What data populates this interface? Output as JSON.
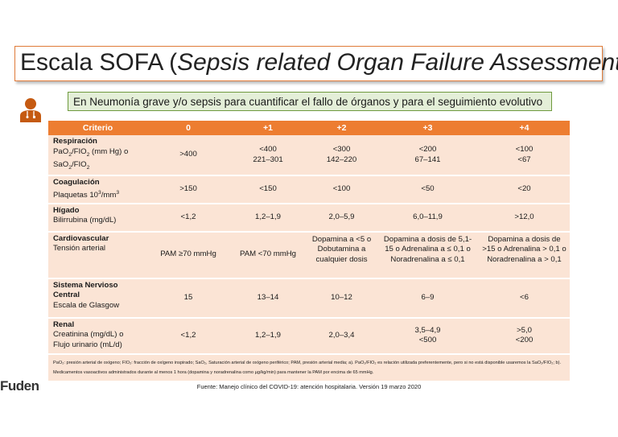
{
  "title": {
    "main": "Escala SOFA (",
    "italic": "Sepsis related Organ Failure Assessment",
    "close": ")"
  },
  "subtitle": "En Neumonía grave y/o sepsis para cuantificar el fallo de órganos y para el seguimiento evolutivo",
  "table": {
    "headers": [
      "Criterio",
      "0",
      "+1",
      "+2",
      "+3",
      "+4"
    ],
    "respiracion": {
      "name": "Respiración",
      "v0": ">400",
      "v1a": "<400",
      "v1b": "221–301",
      "v2a": "<300",
      "v2b": "142–220",
      "v3a": "<200",
      "v3b": "67–141",
      "v4a": "<100",
      "v4b": "<67"
    },
    "coagulacion": {
      "name": "Coagulación",
      "sub": "Plaquetas 10",
      "sub_exp": "3",
      "sub_tail": "/mm",
      "sub_exp2": "3",
      "v0": ">150",
      "v1": "<150",
      "v2": "<100",
      "v3": "<50",
      "v4": "<20"
    },
    "higado": {
      "name": "Hígado",
      "sub": "Bilirrubina (mg/dL)",
      "v0": "<1,2",
      "v1": "1,2–1,9",
      "v2": "2,0–5,9",
      "v3": "6,0–11,9",
      "v4": ">12,0"
    },
    "cardio": {
      "name": "Cardiovascular",
      "sub": "Tensión arterial",
      "v0": "PAM ≥70 mmHg",
      "v1": "PAM <70 mmHg",
      "v2": "Dopamina a <5 o Dobutamina a cualquier dosis",
      "v3": "Dopamina a dosis de 5,1-15 o Adrenalina a ≤ 0,1 o Noradrenalina a ≤ 0,1",
      "v4": "Dopamina a dosis de >15 o Adrenalina > 0,1 o Noradrenalina a > 0,1"
    },
    "snc": {
      "name": "Sistema Nervioso Central",
      "sub": "Escala de Glasgow",
      "v0": "15",
      "v1": "13–14",
      "v2": "10–12",
      "v3": "6–9",
      "v4": "<6"
    },
    "renal": {
      "name": "Renal",
      "sub1": "Creatinina (mg/dL) o",
      "sub2": "Flujo urinario (mL/d)",
      "v0": "<1,2",
      "v1": "1,2–1,9",
      "v2": "2,0–3,4",
      "v3a": "3,5–4,9",
      "v3b": "<500",
      "v4a": ">5,0",
      "v4b": "<200"
    },
    "footnote": "PaO₂: presión arterial de oxígeno; FIO₂: fracción de oxígeno inspirado; SaO₂, Saturación arterial de oxígeno periférico; PAM, presión arterial media; a). PaO₂/FIO₂ es relación utilizada preferentemente, pero si no está disponible usaremos la SaO₂/FIO₂; b). Medicamentos vasoactivos administrados durante al menos 1 hora (dopamina y noradrenalina como µg/kg/min) para mantener la PAM por encima de 65 mmHg."
  },
  "source": "Fuente: Manejo clínico del COVID-19: atención hospitalaria. Versión 19 marzo 2020",
  "logo": "Fuden",
  "colors": {
    "header": "#ed7d31",
    "row": "#fbe4d5",
    "subtitle_bg": "#e4efd8",
    "subtitle_border": "#6f9a3e",
    "icon": "#c55a11"
  }
}
